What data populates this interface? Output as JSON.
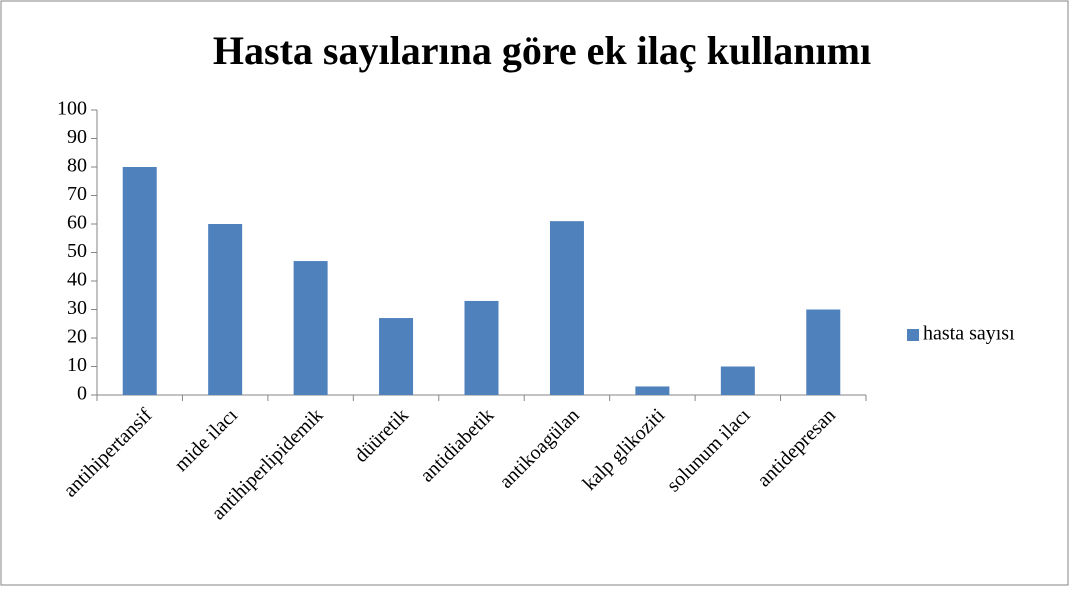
{
  "chart_data": {
    "type": "bar",
    "title": "Hasta sayılarına göre ek ilaç kullanımı",
    "categories": [
      "antihipertansif",
      "mide ilacı",
      "antihiperlipidemik",
      "düüretik",
      "antidiabetik",
      "antikoagülan",
      "kalp glikoziti",
      "solunum ilacı",
      "antidepresan"
    ],
    "series": [
      {
        "name": "hasta sayısı",
        "color": "#4f81bd",
        "values": [
          80,
          60,
          47,
          27,
          33,
          61,
          3,
          10,
          30
        ]
      }
    ],
    "ylim": [
      0,
      100
    ],
    "yticks": [
      0,
      10,
      20,
      30,
      40,
      50,
      60,
      70,
      80,
      90,
      100
    ],
    "grid": false,
    "legend": "right"
  }
}
